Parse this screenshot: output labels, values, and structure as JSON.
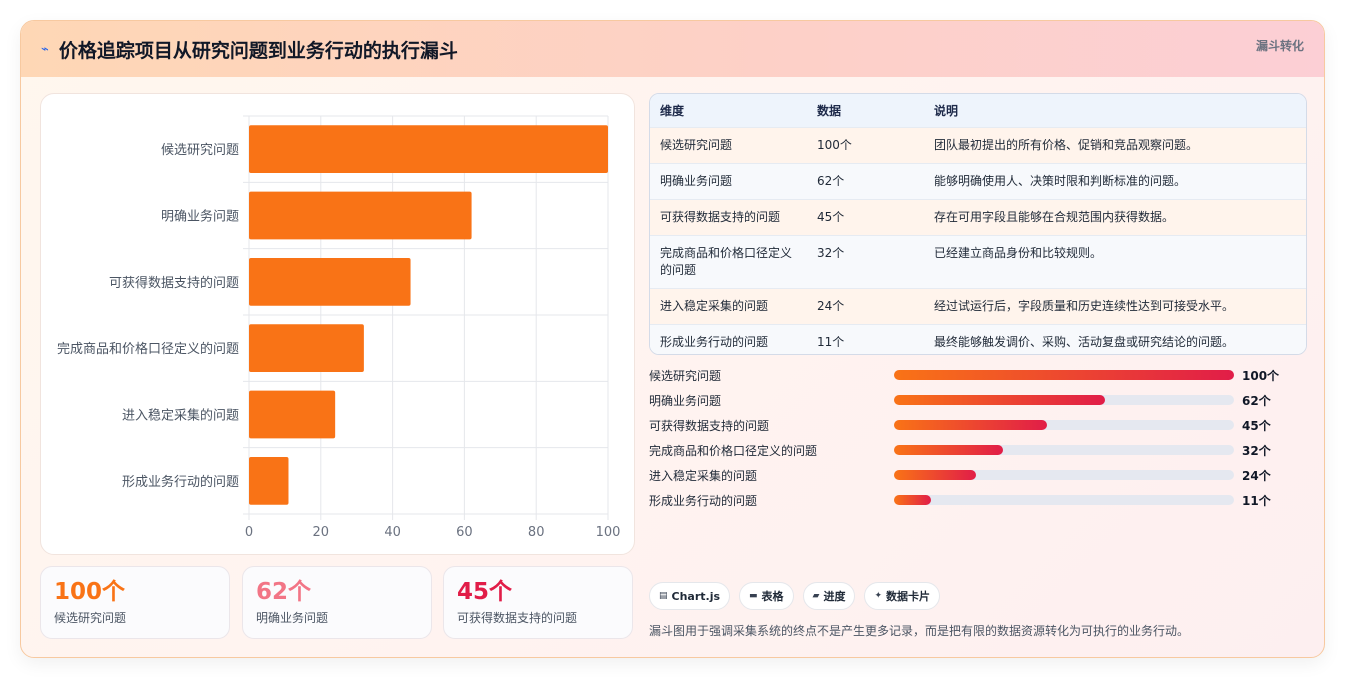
{
  "header": {
    "icon": "pulse-icon",
    "title": "价格追踪项目从研究问题到业务行动的执行漏斗",
    "tag": "漏斗转化"
  },
  "chart_data": {
    "type": "bar",
    "orientation": "horizontal",
    "categories": [
      "候选研究问题",
      "明确业务问题",
      "可获得数据支持的问题",
      "完成商品和价格口径定义的问题",
      "进入稳定采集的问题",
      "形成业务行动的问题"
    ],
    "values": [
      100,
      62,
      45,
      32,
      24,
      11
    ],
    "xlim": [
      0,
      100
    ],
    "xticks": [
      "0",
      "20",
      "40",
      "60",
      "80",
      "100"
    ],
    "bar_color": "#f97316",
    "grid": true,
    "title": "",
    "xlabel": "",
    "ylabel": ""
  },
  "stats": [
    {
      "value": "100个",
      "label": "候选研究问题",
      "color": "#f97316"
    },
    {
      "value": "62个",
      "label": "明确业务问题",
      "color": "#f27586"
    },
    {
      "value": "45个",
      "label": "可获得数据支持的问题",
      "color": "#e11d48"
    }
  ],
  "table": {
    "headers": [
      "维度",
      "数据",
      "说明"
    ],
    "rows": [
      [
        "候选研究问题",
        "100个",
        "团队最初提出的所有价格、促销和竞品观察问题。"
      ],
      [
        "明确业务问题",
        "62个",
        "能够明确使用人、决策时限和判断标准的问题。"
      ],
      [
        "可获得数据支持的问题",
        "45个",
        "存在可用字段且能够在合规范围内获得数据。"
      ],
      [
        "完成商品和价格口径定义的问题",
        "32个",
        "已经建立商品身份和比较规则。"
      ],
      [
        "进入稳定采集的问题",
        "24个",
        "经过试运行后，字段质量和历史连续性达到可接受水平。"
      ],
      [
        "形成业务行动的问题",
        "11个",
        "最终能够触发调价、采购、活动复盘或研究结论的问题。"
      ]
    ]
  },
  "progress": {
    "max": 100,
    "items": [
      {
        "label": "候选研究问题",
        "value": 100,
        "text": "100个"
      },
      {
        "label": "明确业务问题",
        "value": 62,
        "text": "62个"
      },
      {
        "label": "可获得数据支持的问题",
        "value": 45,
        "text": "45个"
      },
      {
        "label": "完成商品和价格口径定义的问题",
        "value": 32,
        "text": "32个"
      },
      {
        "label": "进入稳定采集的问题",
        "value": 24,
        "text": "24个"
      },
      {
        "label": "形成业务行动的问题",
        "value": 11,
        "text": "11个"
      }
    ]
  },
  "chips": [
    {
      "icon": "chart-icon",
      "glyph": "▤",
      "label": "Chart.js"
    },
    {
      "icon": "table-icon",
      "glyph": "▬",
      "label": "表格"
    },
    {
      "icon": "progress-icon",
      "glyph": "▰",
      "label": "进度"
    },
    {
      "icon": "sparkle-icon",
      "glyph": "✦",
      "label": "数据卡片"
    }
  ],
  "note": "漏斗图用于强调采集系统的终点不是产生更多记录，而是把有限的数据资源转化为可执行的业务行动。"
}
